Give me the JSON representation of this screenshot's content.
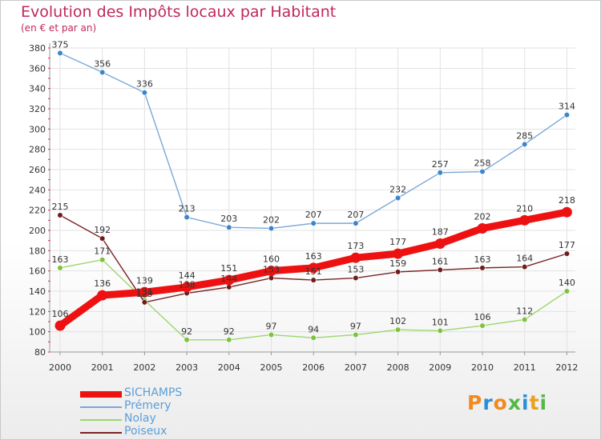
{
  "title": "Evolution des Impôts locaux par Habitant",
  "subtitle": "(en € et par an)",
  "logo": {
    "letters": [
      "P",
      "r",
      "o",
      "x",
      "i",
      "t",
      "i"
    ],
    "colors": [
      "#f28a1e",
      "#2a8fd8",
      "#f28a1e",
      "#55b848",
      "#2a8fd8",
      "#e8a21e",
      "#55b848"
    ]
  },
  "chart_data": {
    "type": "line",
    "title": "Evolution des Impôts locaux par Habitant",
    "subtitle": "(en € et par an)",
    "xlabel": "",
    "ylabel": "",
    "categories": [
      "2000",
      "2001",
      "2002",
      "2003",
      "2004",
      "2005",
      "2006",
      "2007",
      "2008",
      "2009",
      "2010",
      "2011",
      "2012"
    ],
    "ylim": [
      80,
      380
    ],
    "yticks": [
      80,
      100,
      120,
      140,
      160,
      180,
      200,
      220,
      240,
      260,
      280,
      300,
      320,
      340,
      360,
      380
    ],
    "grid": true,
    "legend_position": "bottom-left",
    "series": [
      {
        "name": "SICHAMPS",
        "color": "#ee1111",
        "marker": "#ee1111",
        "emphasis": true,
        "values": [
          106,
          136,
          139,
          144,
          151,
          160,
          163,
          173,
          177,
          187,
          202,
          210,
          218
        ]
      },
      {
        "name": "Prémery",
        "color": "#7aa8d8",
        "marker": "#3a86cc",
        "emphasis": false,
        "values": [
          375,
          356,
          336,
          213,
          203,
          202,
          207,
          207,
          232,
          257,
          258,
          285,
          314
        ]
      },
      {
        "name": "Nolay",
        "color": "#9cd66e",
        "marker": "#7dc23e",
        "emphasis": false,
        "values": [
          163,
          171,
          131,
          92,
          92,
          97,
          94,
          97,
          102,
          101,
          106,
          112,
          140
        ]
      },
      {
        "name": "Poiseux",
        "color": "#7a2424",
        "marker": "#6e1c1c",
        "emphasis": false,
        "values": [
          215,
          192,
          129,
          138,
          144,
          153,
          151,
          153,
          159,
          161,
          163,
          164,
          177
        ]
      }
    ]
  }
}
